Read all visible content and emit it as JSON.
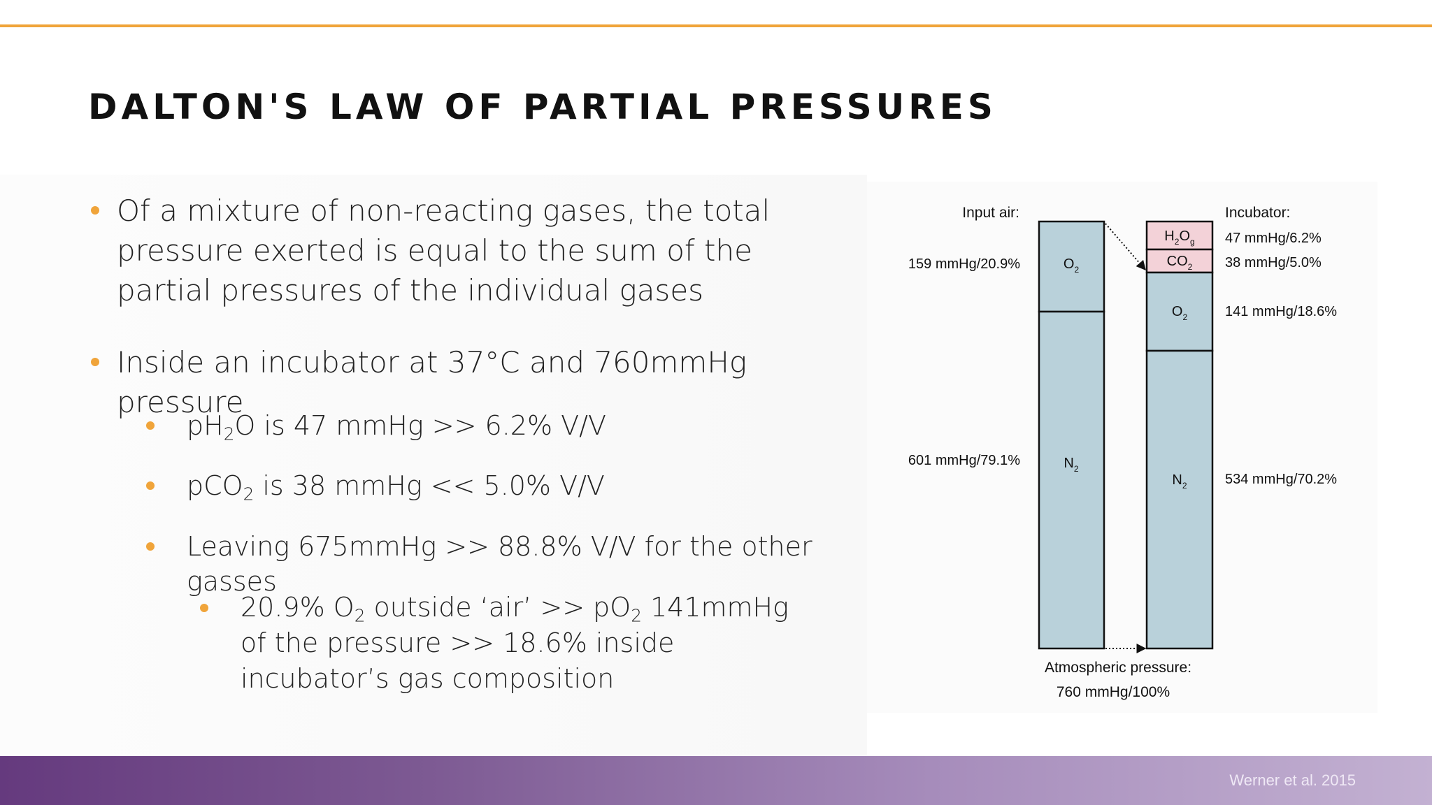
{
  "slide": {
    "title": "DALTON'S LAW OF PARTIAL PRESSURES",
    "citation": "Werner et al. 2015"
  },
  "bullets": {
    "b1": "Of a mixture of non-reacting gases, the total pressure exerted is equal to the sum of the partial pressures of the individual gases",
    "b2": "Inside an incubator at 37°C and 760mmHg pressure",
    "b3": {
      "pre": "pH",
      "sub": "2",
      "post": "O is 47 mmHg >> 6.2% V/V"
    },
    "b4": {
      "pre": "pCO",
      "sub": "2",
      "post": " is 38 mmHg << 5.0% V/V"
    },
    "b5": "Leaving 675mmHg >> 88.8% V/V for the other gasses",
    "b6": {
      "part1": "20.9% O",
      "sub1": "2",
      "part2": " outside ‘air’ >> pO",
      "sub2": "2",
      "part3": " 141mmHg of the pressure >> 18.6% inside incubator’s gas composition"
    }
  },
  "diagram": {
    "input_label": "Input air:",
    "incubator_label": "Incubator:",
    "input_air": [
      {
        "gas": "O",
        "sub": "2",
        "label": "159 mmHg/20.9%",
        "value_mmHg": 159,
        "percent": 20.9
      },
      {
        "gas": "N",
        "sub": "2",
        "label": "601 mmHg/79.1%",
        "value_mmHg": 601,
        "percent": 79.1
      }
    ],
    "incubator": [
      {
        "gas": "H",
        "sub": "2",
        "gas2": "O",
        "sub2": "g",
        "label": "47 mmHg/6.2%",
        "value_mmHg": 47,
        "percent": 6.2
      },
      {
        "gas": "CO",
        "sub": "2",
        "label": "38 mmHg/5.0%",
        "value_mmHg": 38,
        "percent": 5.0
      },
      {
        "gas": "O",
        "sub": "2",
        "label": "141 mmHg/18.6%",
        "value_mmHg": 141,
        "percent": 18.6
      },
      {
        "gas": "N",
        "sub": "2",
        "label": "534 mmHg/70.2%",
        "value_mmHg": 534,
        "percent": 70.2
      }
    ],
    "atmospheric_label": "Atmospheric pressure:",
    "atmospheric_value": "760 mmHg/100%",
    "colors": {
      "gas_fill": "#b9d1da",
      "water_co2_fill": "#f3d2d8",
      "accent": "#f0a43a",
      "footer": "#653a7e"
    }
  }
}
